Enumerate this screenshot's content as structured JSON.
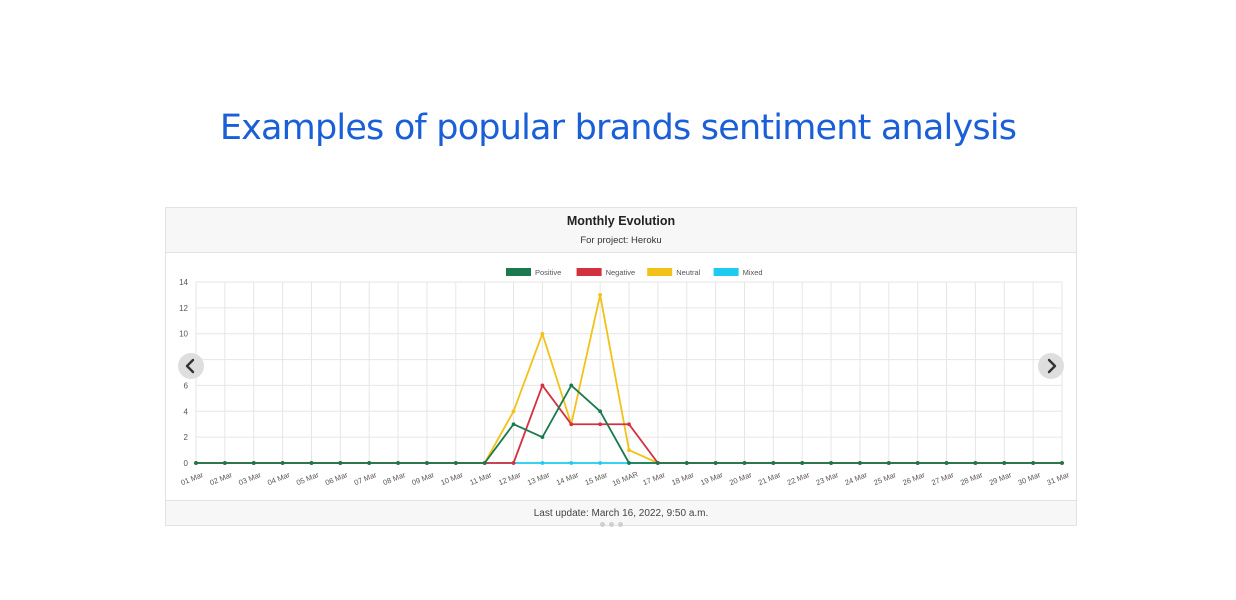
{
  "headline": "Examples of popular brands sentiment analysis",
  "card": {
    "title": "Monthly Evolution",
    "subtitle": "For project: Heroku",
    "footer": "Last update: March 16, 2022, 9:50 a.m."
  },
  "carousel": {
    "prev_icon": "chevron-left-icon",
    "next_icon": "chevron-right-icon"
  },
  "chart_data": {
    "type": "line",
    "categories": [
      "01 Mar",
      "02 Mar",
      "03 Mar",
      "04 Mar",
      "05 Mar",
      "06 Mar",
      "07 Mar",
      "08 Mar",
      "09 Mar",
      "10 Mar",
      "11 Mar",
      "12 Mar",
      "13 Mar",
      "14 Mar",
      "15 Mar",
      "16 MAR",
      "17 Mar",
      "18 Mar",
      "19 Mar",
      "20 Mar",
      "21 Mar",
      "22 Mar",
      "23 Mar",
      "24 Mar",
      "25 Mar",
      "26 Mar",
      "27 Mar",
      "28 Mar",
      "29 Mar",
      "30 Mar",
      "31 Mar"
    ],
    "series": [
      {
        "name": "Positive",
        "color": "#1a7a4e",
        "values": [
          0,
          0,
          0,
          0,
          0,
          0,
          0,
          0,
          0,
          0,
          0,
          3,
          2,
          6,
          4,
          0,
          0,
          0,
          0,
          0,
          0,
          0,
          0,
          0,
          0,
          0,
          0,
          0,
          0,
          0,
          0
        ]
      },
      {
        "name": "Negative",
        "color": "#d33140",
        "values": [
          0,
          0,
          0,
          0,
          0,
          0,
          0,
          0,
          0,
          0,
          0,
          0,
          6,
          3,
          3,
          3,
          0,
          0,
          0,
          0,
          0,
          0,
          0,
          0,
          0,
          0,
          0,
          0,
          0,
          0,
          0
        ]
      },
      {
        "name": "Neutral",
        "color": "#f2c218",
        "values": [
          0,
          0,
          0,
          0,
          0,
          0,
          0,
          0,
          0,
          0,
          0,
          4,
          10,
          3,
          13,
          1,
          0,
          0,
          0,
          0,
          0,
          0,
          0,
          0,
          0,
          0,
          0,
          0,
          0,
          0,
          0
        ]
      },
      {
        "name": "Mixed",
        "color": "#1ccbef",
        "values": [
          0,
          0,
          0,
          0,
          0,
          0,
          0,
          0,
          0,
          0,
          0,
          0,
          0,
          0,
          0,
          0,
          0,
          0,
          0,
          0,
          0,
          0,
          0,
          0,
          0,
          0,
          0,
          0,
          0,
          0,
          0
        ]
      }
    ],
    "ylim": [
      0,
      14
    ],
    "yticks": [
      0,
      2,
      4,
      6,
      8,
      10,
      12,
      14
    ],
    "grid": true,
    "legend": "top-center"
  }
}
